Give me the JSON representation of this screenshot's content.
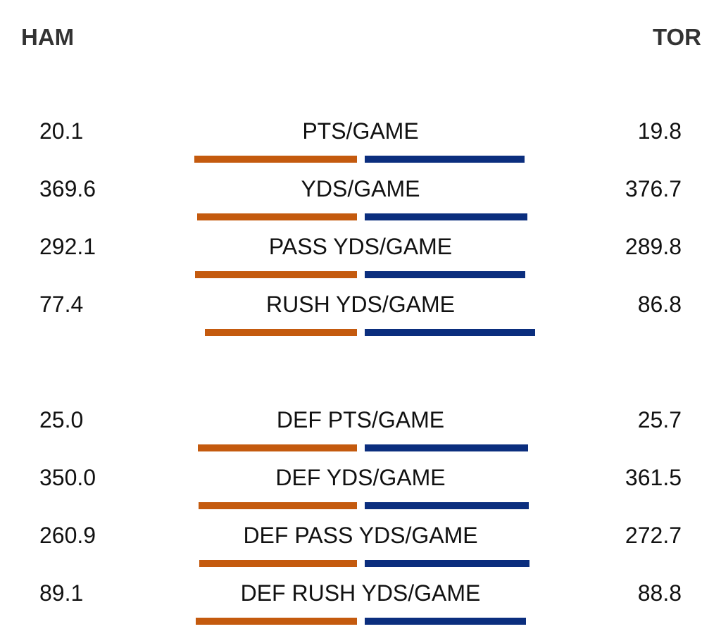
{
  "header": {
    "home_team": "HAM",
    "away_team": "TOR"
  },
  "colors": {
    "home": "#c45a0e",
    "away": "#0b2e7e"
  },
  "sections": [
    {
      "rows": [
        {
          "label": "PTS/GAME",
          "home": "20.1",
          "away": "19.8"
        },
        {
          "label": "YDS/GAME",
          "home": "369.6",
          "away": "376.7"
        },
        {
          "label": "PASS YDS/GAME",
          "home": "292.1",
          "away": "289.8"
        },
        {
          "label": "RUSH YDS/GAME",
          "home": "77.4",
          "away": "86.8"
        }
      ]
    },
    {
      "rows": [
        {
          "label": "DEF PTS/GAME",
          "home": "25.0",
          "away": "25.7"
        },
        {
          "label": "DEF YDS/GAME",
          "home": "350.0",
          "away": "361.5"
        },
        {
          "label": "DEF PASS YDS/GAME",
          "home": "260.9",
          "away": "272.7"
        },
        {
          "label": "DEF RUSH YDS/GAME",
          "home": "89.1",
          "away": "88.8"
        }
      ]
    }
  ]
}
